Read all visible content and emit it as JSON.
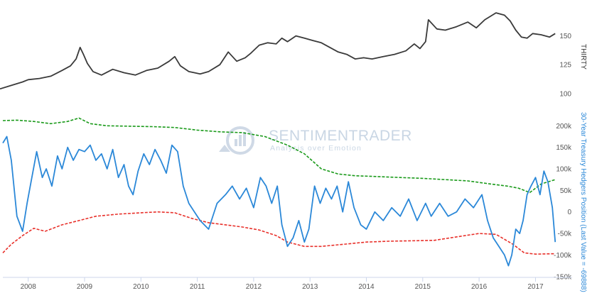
{
  "watermark": {
    "title": "SENTIMENTRADER",
    "subtitle": "Analysis over Emotion",
    "color": "#c9d6e4"
  },
  "chart_data": [
    {
      "id": "top",
      "type": "line",
      "ylabel": "THIRTY",
      "ylim": [
        98,
        175
      ],
      "yticks": [
        100,
        125,
        150
      ],
      "ytick_labels": [
        "100",
        "125",
        "150"
      ],
      "grid": false,
      "series": [
        {
          "color": "#3a3a3a",
          "x": [
            2007.5,
            2007.7,
            2007.9,
            2008.0,
            2008.2,
            2008.4,
            2008.6,
            2008.75,
            2008.85,
            2008.92,
            2008.98,
            2009.05,
            2009.15,
            2009.3,
            2009.5,
            2009.7,
            2009.9,
            2010.1,
            2010.3,
            2010.5,
            2010.6,
            2010.7,
            2010.85,
            2010.95,
            2011.05,
            2011.2,
            2011.4,
            2011.55,
            2011.7,
            2011.85,
            2011.95,
            2012.1,
            2012.25,
            2012.4,
            2012.5,
            2012.6,
            2012.75,
            2012.9,
            2013.05,
            2013.2,
            2013.35,
            2013.5,
            2013.65,
            2013.8,
            2013.95,
            2014.1,
            2014.3,
            2014.5,
            2014.7,
            2014.85,
            2014.95,
            2015.05,
            2015.1,
            2015.25,
            2015.4,
            2015.6,
            2015.8,
            2015.95,
            2016.1,
            2016.3,
            2016.45,
            2016.55,
            2016.65,
            2016.75,
            2016.85,
            2016.95,
            2017.1,
            2017.25,
            2017.35
          ],
          "y": [
            104,
            107,
            110,
            112,
            113,
            115,
            120,
            124,
            130,
            140,
            134,
            126,
            119,
            116,
            121,
            118,
            116,
            120,
            122,
            128,
            132,
            124,
            119,
            118,
            117,
            119,
            125,
            136,
            128,
            131,
            135,
            142,
            144,
            143,
            148,
            145,
            150,
            148,
            146,
            144,
            140,
            136,
            134,
            130,
            131,
            130,
            132,
            134,
            137,
            143,
            139,
            145,
            164,
            156,
            155,
            158,
            162,
            157,
            164,
            170,
            168,
            163,
            155,
            149,
            148,
            152,
            151,
            149,
            152
          ]
        }
      ]
    },
    {
      "id": "bottom",
      "type": "line",
      "ylabel": "30-Year Treasury Hedgers Position (Last Value = -69888)",
      "ylim": [
        -152000,
        245000
      ],
      "yticks": [
        -150000,
        -100000,
        -50000,
        0,
        50000,
        100000,
        150000,
        200000
      ],
      "ytick_labels": [
        "-150k",
        "-100k",
        "-50k",
        "0",
        "50k",
        "100k",
        "150k",
        "200k"
      ],
      "xlim": [
        2007.55,
        2017.65
      ],
      "xticks": [
        2008,
        2009,
        2010,
        2011,
        2012,
        2013,
        2014,
        2015,
        2016,
        2017
      ],
      "xtick_labels": [
        "2008",
        "2009",
        "2010",
        "2011",
        "2012",
        "2013",
        "2014",
        "2015",
        "2016",
        "2017"
      ],
      "grid": false,
      "series": [
        {
          "color": "#2b88d8",
          "x": [
            2007.55,
            2007.62,
            2007.7,
            2007.8,
            2007.9,
            2007.98,
            2008.05,
            2008.15,
            2008.25,
            2008.32,
            2008.42,
            2008.52,
            2008.6,
            2008.7,
            2008.8,
            2008.9,
            2009.0,
            2009.1,
            2009.2,
            2009.3,
            2009.4,
            2009.5,
            2009.6,
            2009.7,
            2009.78,
            2009.86,
            2009.95,
            2010.05,
            2010.15,
            2010.25,
            2010.35,
            2010.45,
            2010.55,
            2010.65,
            2010.75,
            2010.85,
            2010.95,
            2011.05,
            2011.2,
            2011.35,
            2011.5,
            2011.62,
            2011.75,
            2011.87,
            2012.0,
            2012.12,
            2012.22,
            2012.32,
            2012.42,
            2012.5,
            2012.6,
            2012.7,
            2012.8,
            2012.9,
            2012.98,
            2013.08,
            2013.18,
            2013.28,
            2013.38,
            2013.48,
            2013.58,
            2013.68,
            2013.78,
            2013.9,
            2014.0,
            2014.15,
            2014.3,
            2014.45,
            2014.6,
            2014.75,
            2014.9,
            2015.05,
            2015.15,
            2015.3,
            2015.45,
            2015.6,
            2015.75,
            2015.9,
            2016.05,
            2016.15,
            2016.25,
            2016.35,
            2016.45,
            2016.52,
            2016.58,
            2016.65,
            2016.72,
            2016.78,
            2016.85,
            2016.92,
            2017.0,
            2017.08,
            2017.15,
            2017.22,
            2017.3,
            2017.35
          ],
          "y": [
            160000,
            175000,
            120000,
            -10000,
            -45000,
            20000,
            70000,
            140000,
            80000,
            100000,
            60000,
            130000,
            100000,
            150000,
            120000,
            145000,
            140000,
            155000,
            120000,
            135000,
            100000,
            145000,
            80000,
            110000,
            60000,
            40000,
            95000,
            135000,
            110000,
            145000,
            120000,
            90000,
            155000,
            140000,
            60000,
            20000,
            0,
            -20000,
            -40000,
            20000,
            40000,
            60000,
            30000,
            55000,
            10000,
            80000,
            60000,
            20000,
            60000,
            -30000,
            -80000,
            -60000,
            -20000,
            -70000,
            -40000,
            60000,
            20000,
            55000,
            30000,
            60000,
            0,
            70000,
            10000,
            -30000,
            -40000,
            0,
            -20000,
            10000,
            -10000,
            30000,
            -20000,
            20000,
            -10000,
            20000,
            -10000,
            0,
            30000,
            10000,
            40000,
            -20000,
            -60000,
            -80000,
            -100000,
            -125000,
            -100000,
            -40000,
            -50000,
            -20000,
            40000,
            60000,
            80000,
            40000,
            95000,
            70000,
            10000,
            -69888
          ]
        },
        {
          "color": "#1a9a1a",
          "dashed": true,
          "x": [
            2007.55,
            2007.8,
            2008.1,
            2008.4,
            2008.7,
            2008.9,
            2009.1,
            2009.4,
            2009.8,
            2010.2,
            2010.6,
            2011.0,
            2011.4,
            2011.8,
            2012.2,
            2012.6,
            2012.9,
            2013.2,
            2013.5,
            2013.8,
            2014.2,
            2014.6,
            2015.0,
            2015.4,
            2015.8,
            2016.2,
            2016.5,
            2016.7,
            2016.9,
            2017.1,
            2017.35
          ],
          "y": [
            212000,
            213000,
            210000,
            205000,
            210000,
            218000,
            205000,
            200000,
            199000,
            198000,
            196000,
            190000,
            186000,
            184000,
            175000,
            155000,
            135000,
            100000,
            88000,
            84000,
            82000,
            80000,
            78000,
            75000,
            72000,
            65000,
            60000,
            55000,
            45000,
            65000,
            75000
          ]
        },
        {
          "color": "#e8302a",
          "dashed": true,
          "x": [
            2007.55,
            2007.7,
            2007.9,
            2008.1,
            2008.3,
            2008.6,
            2008.9,
            2009.2,
            2009.6,
            2010.0,
            2010.3,
            2010.6,
            2010.9,
            2011.2,
            2011.5,
            2011.8,
            2012.1,
            2012.4,
            2012.6,
            2012.9,
            2013.2,
            2013.6,
            2014.0,
            2014.4,
            2014.8,
            2015.2,
            2015.6,
            2016.0,
            2016.3,
            2016.6,
            2016.8,
            2017.0,
            2017.35
          ],
          "y": [
            -95000,
            -75000,
            -55000,
            -38000,
            -45000,
            -30000,
            -20000,
            -10000,
            -5000,
            -2000,
            0,
            -2000,
            -15000,
            -25000,
            -30000,
            -35000,
            -42000,
            -55000,
            -70000,
            -80000,
            -80000,
            -75000,
            -70000,
            -68000,
            -67000,
            -66000,
            -58000,
            -50000,
            -52000,
            -75000,
            -95000,
            -98000,
            -97000
          ]
        }
      ]
    }
  ]
}
